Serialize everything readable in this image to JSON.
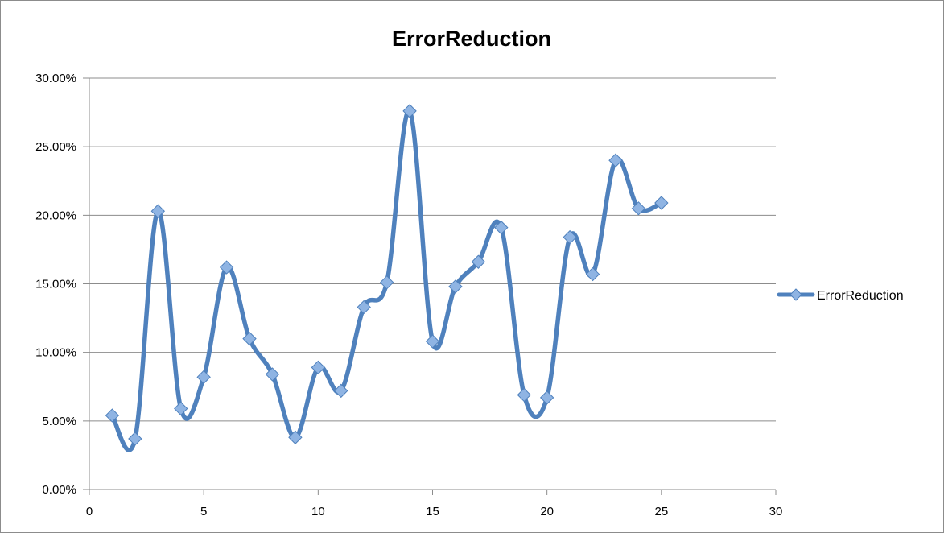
{
  "chart_data": {
    "type": "line",
    "title": "ErrorReduction",
    "xlabel": "",
    "ylabel": "",
    "xlim": [
      0,
      30
    ],
    "ylim": [
      0,
      0.3
    ],
    "x_ticks": [
      0,
      5,
      10,
      15,
      20,
      25,
      30
    ],
    "x_tick_labels": [
      "0",
      "5",
      "10",
      "15",
      "20",
      "25",
      "30"
    ],
    "y_ticks": [
      0,
      0.05,
      0.1,
      0.15,
      0.2,
      0.25,
      0.3
    ],
    "y_tick_labels": [
      "0.00%",
      "5.00%",
      "10.00%",
      "15.00%",
      "20.00%",
      "25.00%",
      "30.00%"
    ],
    "grid": "horizontal",
    "smooth": true,
    "marker": "diamond",
    "legend_position": "right",
    "series": [
      {
        "name": "ErrorReduction",
        "color": "#4f81bd",
        "marker_fill": "#8fb4e3",
        "x": [
          1,
          2,
          3,
          4,
          5,
          6,
          7,
          8,
          9,
          10,
          11,
          12,
          13,
          14,
          15,
          16,
          17,
          18,
          19,
          20,
          21,
          22,
          23,
          24,
          25
        ],
        "values": [
          0.054,
          0.037,
          0.203,
          0.059,
          0.082,
          0.162,
          0.11,
          0.084,
          0.038,
          0.089,
          0.072,
          0.133,
          0.151,
          0.276,
          0.108,
          0.148,
          0.166,
          0.191,
          0.069,
          0.067,
          0.184,
          0.157,
          0.24,
          0.205,
          0.209
        ]
      }
    ]
  }
}
